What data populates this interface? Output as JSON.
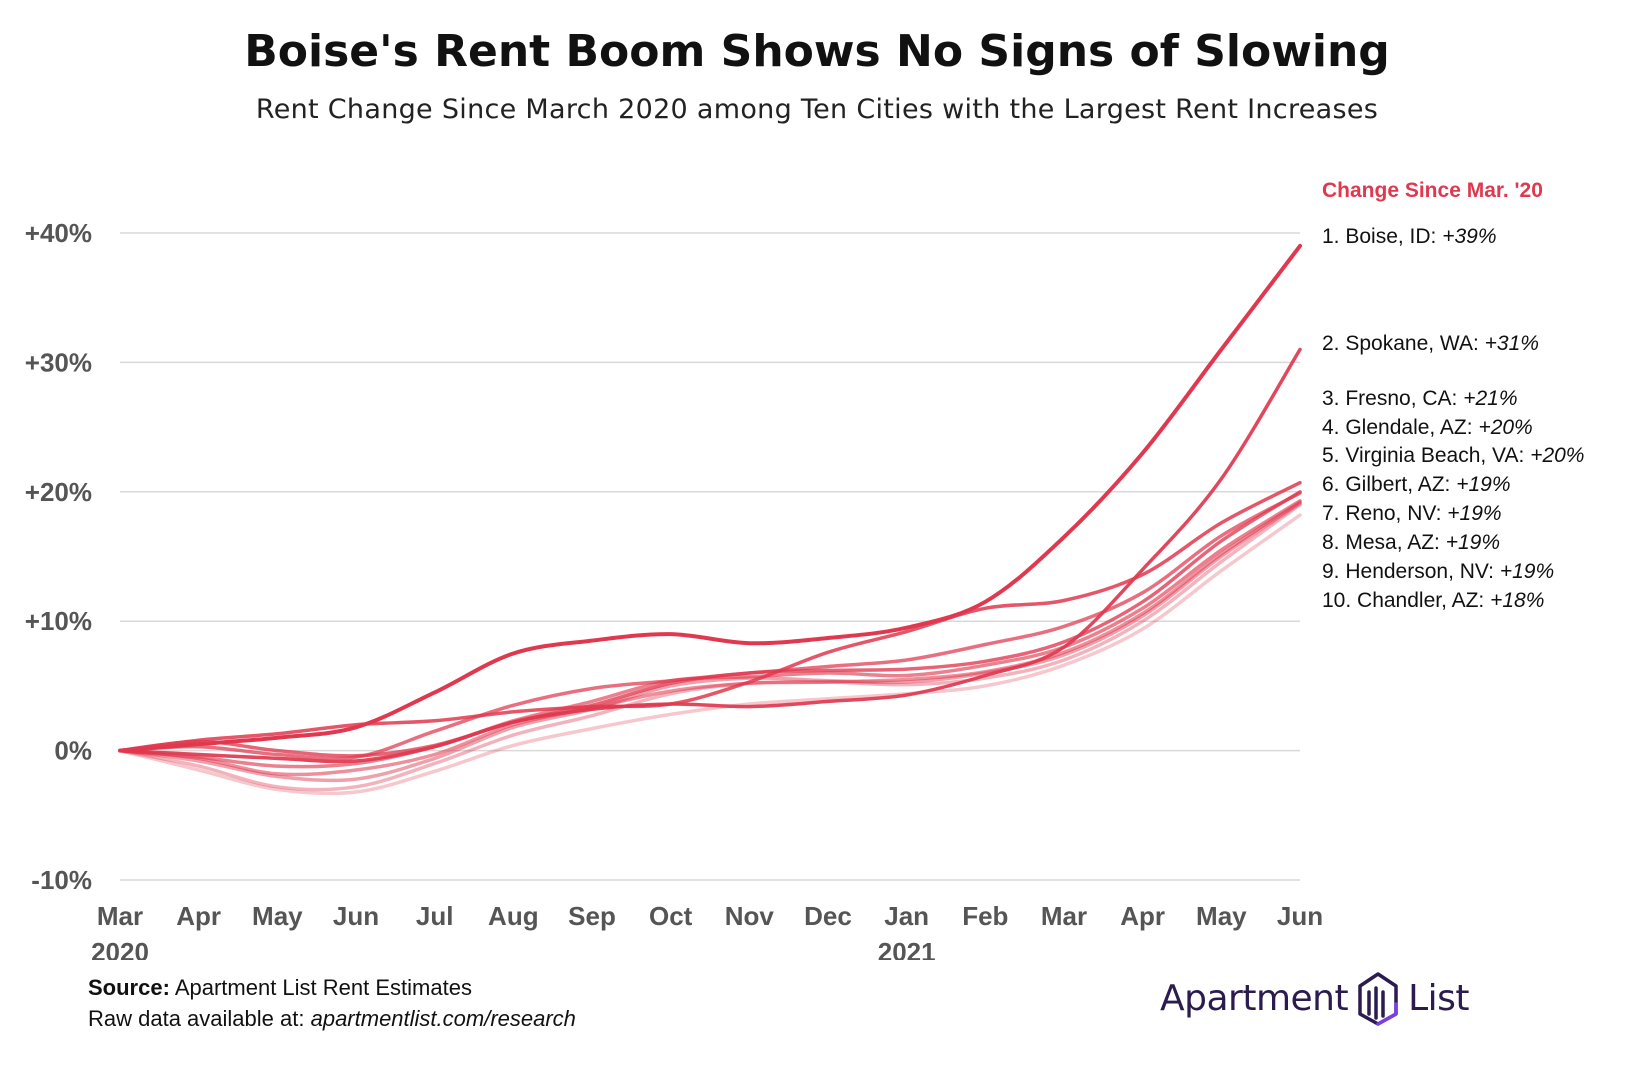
{
  "title": "Boise's Rent Boom Shows No Signs of Slowing",
  "subtitle": "Rent Change Since March 2020 among Ten Cities with the Largest Rent Increases",
  "source_label": "Source:",
  "source_text": "Apartment List Rent Estimates",
  "raw_label": "Raw data available at:",
  "raw_url": "apartmentlist.com/research",
  "logo": {
    "word1": "Apartment",
    "word2": "List",
    "icon": "apartment-list-logo-icon"
  },
  "colors": {
    "accent": "#e0384f",
    "grid": "#d9d9d9",
    "tick_text": "#555555"
  },
  "chart_data": {
    "type": "line",
    "title": "Boise's Rent Boom Shows No Signs of Slowing",
    "subtitle": "Rent Change Since March 2020 among Ten Cities with the Largest Rent Increases",
    "x": [
      "Mar 2020",
      "Apr",
      "May",
      "Jun",
      "Jul",
      "Aug",
      "Sep",
      "Oct",
      "Nov",
      "Dec",
      "Jan 2021",
      "Feb",
      "Mar",
      "Apr",
      "May",
      "Jun"
    ],
    "x_tick_labels": [
      [
        "Mar",
        "2020"
      ],
      [
        "Apr",
        ""
      ],
      [
        "May",
        ""
      ],
      [
        "Jun",
        ""
      ],
      [
        "Jul",
        ""
      ],
      [
        "Aug",
        ""
      ],
      [
        "Sep",
        ""
      ],
      [
        "Oct",
        ""
      ],
      [
        "Nov",
        ""
      ],
      [
        "Dec",
        ""
      ],
      [
        "Jan",
        "2021"
      ],
      [
        "Feb",
        ""
      ],
      [
        "Mar",
        ""
      ],
      [
        "Apr",
        ""
      ],
      [
        "May",
        ""
      ],
      [
        "Jun",
        ""
      ]
    ],
    "ylim": [
      -10,
      40
    ],
    "y_ticks": [
      -10,
      0,
      10,
      20,
      30,
      40
    ],
    "y_tick_labels": [
      "-10%",
      "0%",
      "+10%",
      "+20%",
      "+30%",
      "+40%"
    ],
    "grid": "horizontal",
    "legend_title": "Change Since Mar. '20",
    "legend_position": "right",
    "series": [
      {
        "name": "1. Boise, ID:",
        "label_value": "+39%",
        "opacity": 1.0,
        "values": [
          0,
          0.5,
          1.0,
          1.8,
          4.5,
          7.5,
          8.5,
          9.0,
          8.3,
          8.7,
          9.5,
          11.5,
          16.5,
          23.0,
          31.0,
          39.0
        ]
      },
      {
        "name": "2. Spokane, WA:",
        "label_value": "+31%",
        "opacity": 0.92,
        "values": [
          0,
          -0.3,
          -0.6,
          -0.8,
          0.3,
          2.2,
          3.2,
          3.6,
          3.4,
          3.8,
          4.3,
          5.8,
          8.0,
          14.0,
          21.0,
          31.0
        ]
      },
      {
        "name": "3. Fresno, CA:",
        "label_value": "+21%",
        "opacity": 0.85,
        "values": [
          0,
          0.8,
          1.3,
          2.0,
          2.3,
          3.0,
          3.4,
          3.6,
          5.3,
          7.6,
          9.2,
          11.0,
          11.6,
          13.6,
          17.6,
          20.7
        ]
      },
      {
        "name": "4. Glendale, AZ:",
        "label_value": "+20%",
        "opacity": 0.78,
        "values": [
          0,
          0.7,
          0.0,
          -0.4,
          0.4,
          2.2,
          3.5,
          5.2,
          6.0,
          6.2,
          6.3,
          6.9,
          8.4,
          11.5,
          16.2,
          20.0
        ]
      },
      {
        "name": "5. Virginia Beach, VA:",
        "label_value": "+20%",
        "opacity": 0.72,
        "values": [
          0,
          0.3,
          -0.3,
          -0.5,
          1.5,
          3.5,
          4.8,
          5.4,
          6.0,
          6.5,
          7.0,
          8.2,
          9.6,
          12.2,
          16.6,
          19.9
        ]
      },
      {
        "name": "6. Gilbert, AZ:",
        "label_value": "+19%",
        "opacity": 0.64,
        "values": [
          0,
          -0.5,
          -1.2,
          -1.0,
          0.3,
          2.3,
          3.8,
          5.4,
          5.7,
          6.0,
          5.8,
          6.6,
          8.0,
          11.0,
          15.5,
          19.3
        ]
      },
      {
        "name": "7. Reno, NV:",
        "label_value": "+19%",
        "opacity": 0.56,
        "values": [
          0,
          -0.6,
          -1.8,
          -1.5,
          -0.3,
          2.0,
          3.3,
          4.6,
          5.2,
          5.3,
          5.5,
          6.1,
          7.6,
          10.6,
          15.2,
          19.2
        ]
      },
      {
        "name": "8. Mesa, AZ:",
        "label_value": "+19%",
        "opacity": 0.48,
        "values": [
          0,
          -0.8,
          -2.0,
          -2.2,
          -0.6,
          1.8,
          3.2,
          5.0,
          5.6,
          5.4,
          5.3,
          6.0,
          7.4,
          10.4,
          15.0,
          19.1
        ]
      },
      {
        "name": "9. Henderson, NV:",
        "label_value": "+19%",
        "opacity": 0.38,
        "values": [
          0,
          -1.2,
          -2.8,
          -2.8,
          -1.0,
          1.2,
          2.7,
          4.4,
          5.2,
          5.3,
          5.1,
          5.6,
          7.0,
          10.0,
          14.6,
          19.0
        ]
      },
      {
        "name": "10. Chandler, AZ:",
        "label_value": "+18%",
        "opacity": 0.28,
        "values": [
          0,
          -1.5,
          -3.0,
          -3.2,
          -1.6,
          0.4,
          1.7,
          2.8,
          3.6,
          4.0,
          4.4,
          5.0,
          6.6,
          9.4,
          13.9,
          18.2
        ]
      }
    ]
  }
}
